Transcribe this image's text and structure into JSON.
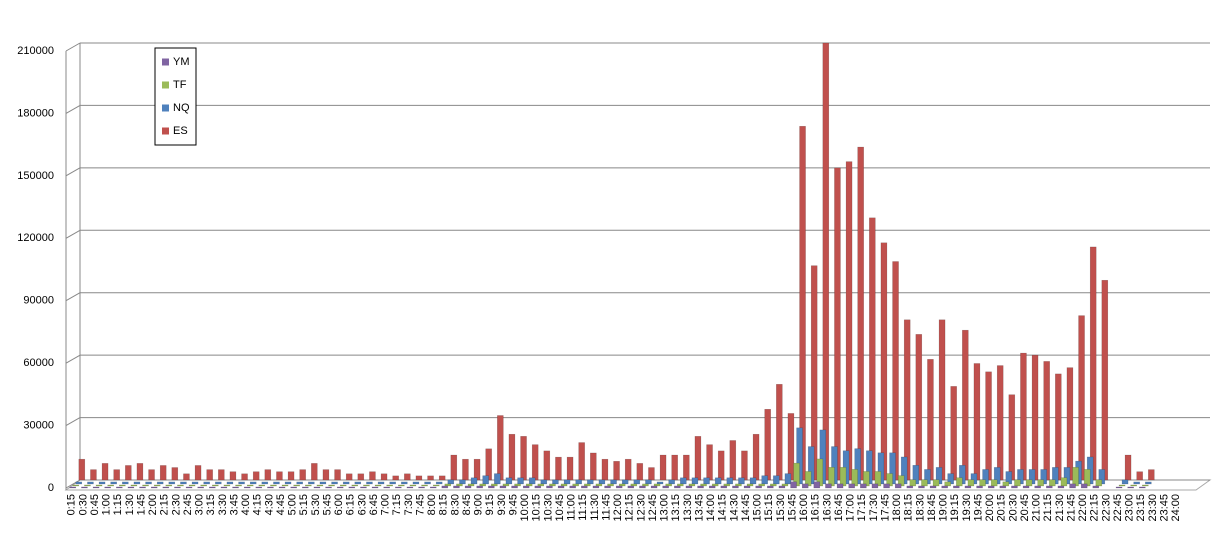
{
  "chart_data": {
    "type": "bar3d",
    "categories": [
      "0:15",
      "0:30",
      "0:45",
      "1:00",
      "1:15",
      "1:30",
      "1:45",
      "2:00",
      "2:15",
      "2:30",
      "2:45",
      "3:00",
      "3:15",
      "3:30",
      "3:45",
      "4:00",
      "4:15",
      "4:30",
      "4:45",
      "5:00",
      "5:15",
      "5:30",
      "5:45",
      "6:00",
      "6:15",
      "6:30",
      "6:45",
      "7:00",
      "7:15",
      "7:30",
      "7:45",
      "8:00",
      "8:15",
      "8:30",
      "8:45",
      "9:00",
      "9:15",
      "9:30",
      "9:45",
      "10:00",
      "10:15",
      "10:30",
      "10:45",
      "11:00",
      "11:15",
      "11:30",
      "11:45",
      "12:00",
      "12:15",
      "12:30",
      "12:45",
      "13:00",
      "13:15",
      "13:30",
      "13:45",
      "14:00",
      "14:15",
      "14:30",
      "14:45",
      "15:00",
      "15:15",
      "15:30",
      "15:45",
      "16:00",
      "16:15",
      "16:30",
      "16:45",
      "17:00",
      "17:15",
      "17:30",
      "17:45",
      "18:00",
      "18:15",
      "18:30",
      "18:45",
      "19:00",
      "19:15",
      "19:30",
      "19:45",
      "20:00",
      "20:15",
      "20:30",
      "20:45",
      "21:00",
      "21:15",
      "21:30",
      "21:45",
      "22:00",
      "22:15",
      "22:30",
      "22:45",
      "23:00",
      "23:15",
      "23:30",
      "23:45",
      "24:00"
    ],
    "series": [
      {
        "name": "YM",
        "color": "#8064a2",
        "values": [
          500,
          500,
          500,
          500,
          500,
          500,
          500,
          500,
          500,
          500,
          500,
          500,
          500,
          500,
          500,
          500,
          500,
          500,
          500,
          500,
          500,
          500,
          500,
          500,
          500,
          500,
          500,
          500,
          500,
          500,
          500,
          500,
          1000,
          1000,
          1000,
          1000,
          1000,
          1000,
          1000,
          1000,
          1000,
          1000,
          1000,
          1000,
          1000,
          1000,
          1000,
          1000,
          1000,
          1000,
          1000,
          1000,
          1000,
          1000,
          1000,
          1000,
          1000,
          1000,
          1000,
          1000,
          1000,
          1000,
          3000,
          2000,
          3000,
          2000,
          2000,
          2000,
          2000,
          2000,
          2000,
          2000,
          1000,
          1000,
          1000,
          1000,
          1000,
          1000,
          1000,
          1000,
          1000,
          1000,
          1000,
          1000,
          1000,
          1000,
          2000,
          2000,
          1000,
          0,
          500,
          500,
          500,
          0,
          0,
          0
        ]
      },
      {
        "name": "TF",
        "color": "#9bbb59",
        "values": [
          500,
          500,
          500,
          500,
          500,
          500,
          500,
          500,
          500,
          500,
          500,
          500,
          500,
          500,
          500,
          500,
          500,
          500,
          500,
          500,
          500,
          500,
          500,
          500,
          500,
          500,
          500,
          500,
          500,
          500,
          500,
          500,
          1000,
          1000,
          1000,
          1000,
          1000,
          1000,
          1000,
          1000,
          1000,
          1000,
          1000,
          1000,
          1000,
          1000,
          1000,
          1000,
          1000,
          1000,
          1000,
          1000,
          1000,
          1000,
          1000,
          1000,
          1000,
          1000,
          1000,
          1000,
          1000,
          1000,
          11000,
          7000,
          13000,
          9000,
          9000,
          8000,
          7000,
          7000,
          6000,
          5000,
          3000,
          3000,
          3000,
          2000,
          4000,
          3000,
          3000,
          3000,
          2000,
          3000,
          3000,
          3000,
          3000,
          4000,
          9000,
          8000,
          3000,
          0,
          500,
          500,
          500,
          0,
          0,
          0
        ]
      },
      {
        "name": "NQ",
        "color": "#4f81bd",
        "values": [
          1000,
          1000,
          1000,
          1000,
          1000,
          1000,
          1000,
          1000,
          1000,
          1000,
          1000,
          1000,
          1000,
          1000,
          1000,
          1000,
          1000,
          1000,
          1000,
          1000,
          1000,
          1000,
          1000,
          1000,
          1000,
          1000,
          1000,
          1000,
          1000,
          1000,
          1000,
          1000,
          2000,
          2000,
          3000,
          4000,
          5000,
          3000,
          3000,
          3000,
          2000,
          2000,
          2000,
          2000,
          2000,
          2000,
          2000,
          2000,
          2000,
          2000,
          1000,
          2000,
          3000,
          3000,
          3000,
          3000,
          3000,
          3000,
          3000,
          4000,
          4000,
          5000,
          27000,
          18000,
          26000,
          18000,
          16000,
          17000,
          16000,
          15000,
          15000,
          13000,
          9000,
          7000,
          8000,
          5000,
          9000,
          5000,
          7000,
          8000,
          6000,
          7000,
          7000,
          7000,
          8000,
          8000,
          11000,
          13000,
          7000,
          0,
          2000,
          1000,
          1000,
          0,
          0,
          0
        ]
      },
      {
        "name": "ES",
        "color": "#c0504d",
        "values": [
          10000,
          5000,
          8000,
          5000,
          7000,
          8000,
          5000,
          7000,
          6000,
          3000,
          7000,
          5000,
          5000,
          4000,
          3000,
          4000,
          5000,
          4000,
          4000,
          5000,
          8000,
          5000,
          5000,
          3000,
          3000,
          4000,
          3000,
          2000,
          3000,
          2000,
          2000,
          2000,
          12000,
          10000,
          10000,
          15000,
          31000,
          22000,
          21000,
          17000,
          14000,
          11000,
          11000,
          18000,
          13000,
          10000,
          9000,
          10000,
          8000,
          6000,
          12000,
          12000,
          12000,
          21000,
          17000,
          14000,
          19000,
          14000,
          22000,
          34000,
          46000,
          32000,
          170000,
          103000,
          210000,
          150000,
          153000,
          160000,
          126000,
          114000,
          105000,
          77000,
          70000,
          58000,
          77000,
          45000,
          72000,
          56000,
          52000,
          55000,
          41000,
          61000,
          60000,
          57000,
          51000,
          54000,
          79000,
          112000,
          96000,
          0,
          12000,
          4000,
          5000,
          0,
          0,
          0
        ]
      }
    ],
    "ylim": [
      0,
      210000
    ],
    "yticks": [
      0,
      30000,
      60000,
      90000,
      120000,
      150000,
      180000,
      210000
    ],
    "grid": true,
    "legend": "upper-left"
  }
}
